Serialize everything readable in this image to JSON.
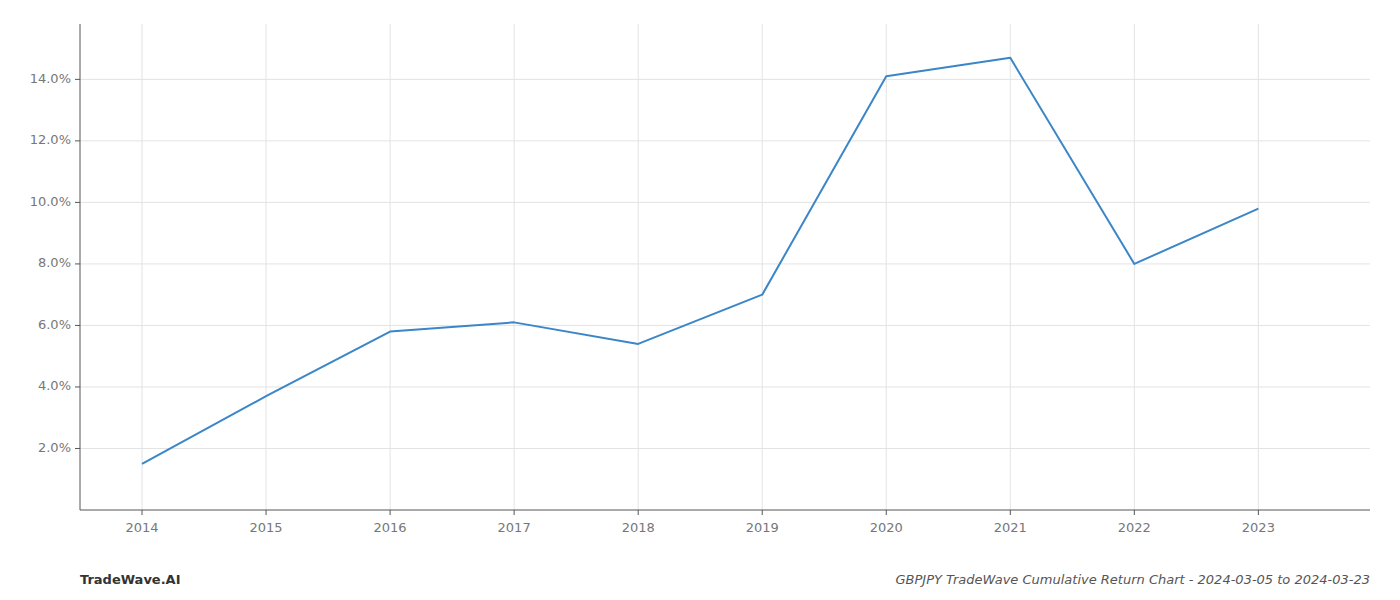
{
  "chart_data": {
    "type": "line",
    "title": "GBPJPY TradeWave Cumulative Return Chart - 2024-03-05 to 2024-03-23",
    "annotations": [
      "TradeWave.AI"
    ],
    "x": [
      2014,
      2015,
      2016,
      2017,
      2018,
      2019,
      2020,
      2021,
      2022,
      2023
    ],
    "values": [
      1.5,
      3.7,
      5.8,
      6.1,
      5.4,
      7.0,
      14.1,
      14.7,
      8.0,
      9.8
    ],
    "color": "#3a86c8",
    "xlim": [
      2013.5,
      2023.9
    ],
    "xticks": [
      2014,
      2015,
      2016,
      2017,
      2018,
      2019,
      2020,
      2021,
      2022,
      2023
    ],
    "ylim": [
      0,
      15.8
    ],
    "yticks": [
      {
        "value": 2.0,
        "label": "2.0%"
      },
      {
        "value": 4.0,
        "label": "4.0%"
      },
      {
        "value": 6.0,
        "label": "6.0%"
      },
      {
        "value": 8.0,
        "label": "8.0%"
      },
      {
        "value": 10.0,
        "label": "10.0%"
      },
      {
        "value": 12.0,
        "label": "12.0%"
      },
      {
        "value": 14.0,
        "label": "14.0%"
      }
    ],
    "grid": true
  }
}
